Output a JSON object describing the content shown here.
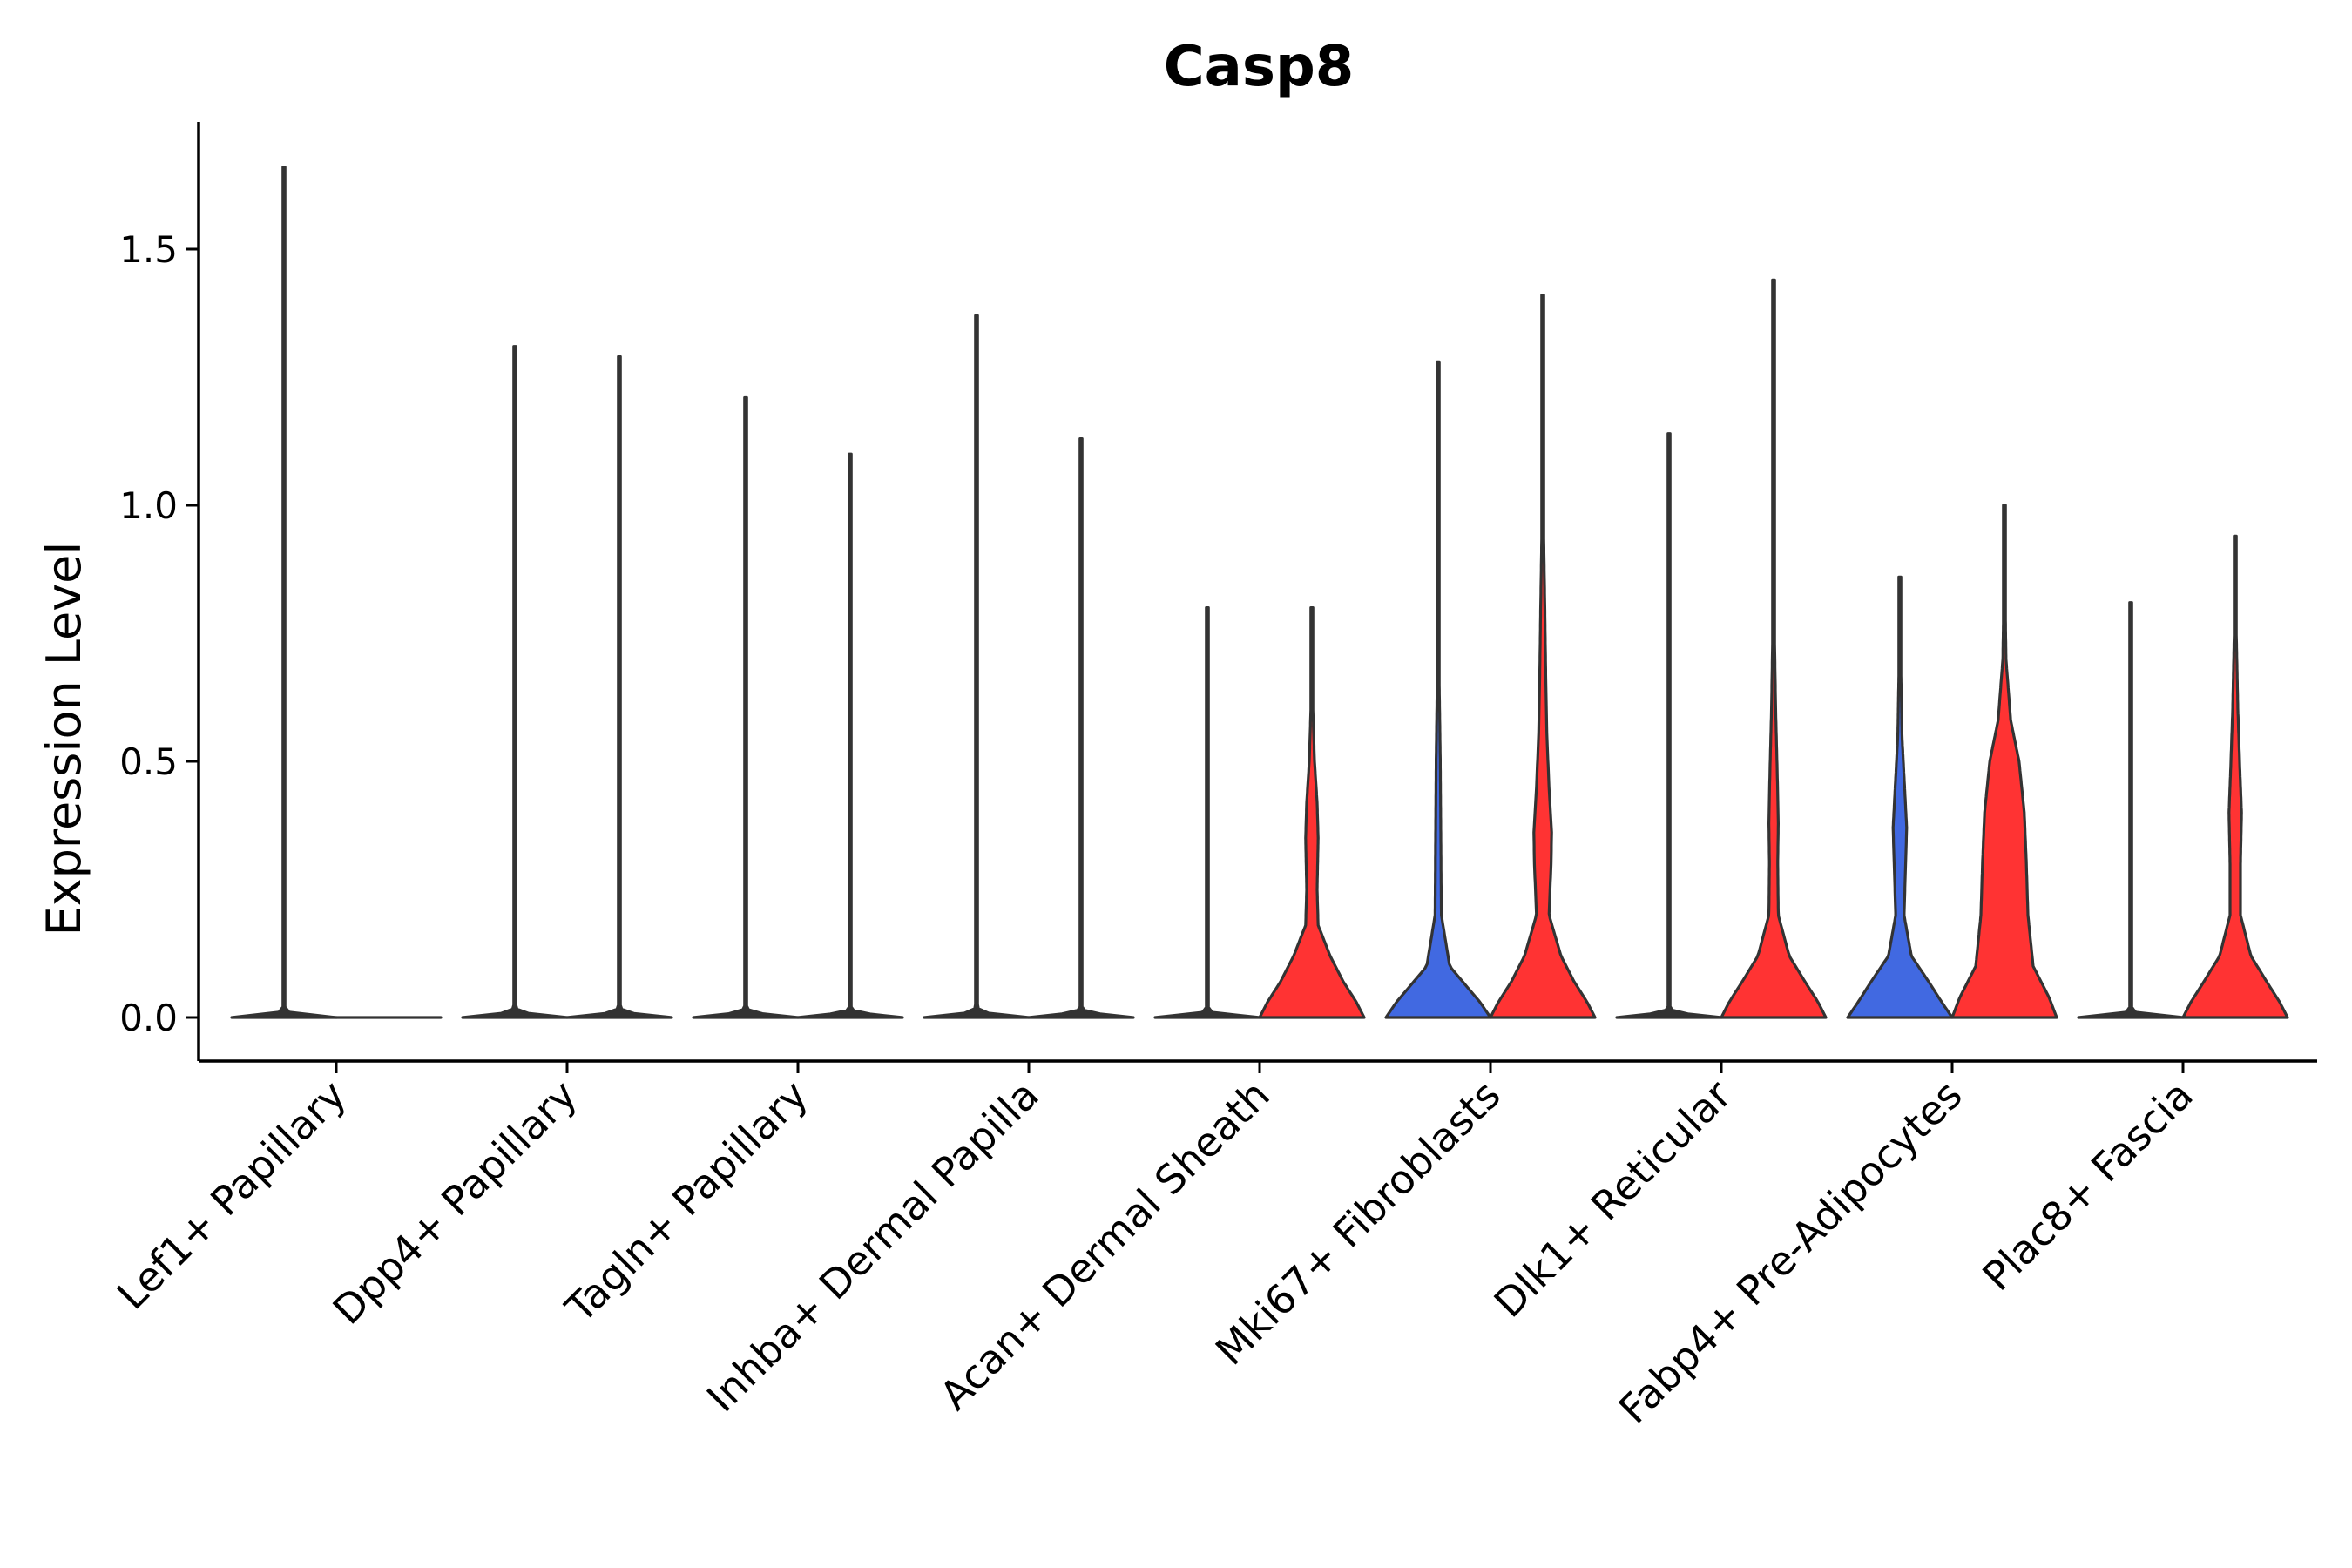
{
  "chart_data": {
    "type": "violin",
    "title": "Casp8",
    "xlabel": "",
    "ylabel": "Expression Level",
    "ylim": [
      -0.08,
      1.75
    ],
    "yticks": [
      0.0,
      0.5,
      1.0,
      1.5
    ],
    "ytick_labels": [
      "0.0",
      "0.5",
      "1.0",
      "1.5"
    ],
    "grid": false,
    "colors": {
      "group1": "#4169E1",
      "group2": "#FF3333",
      "outline": "#333333"
    },
    "categories": [
      "Lef1+ Papillary",
      "Dpp4+ Papillary",
      "Tagln+ Papillary",
      "Inhba+ Dermal Papilla",
      "Acan+ Dermal Sheath",
      "Mki67+ Fibroblasts",
      "Dlk1+ Reticular",
      "Fabp4+ Pre-Adipocytes",
      "Plac8+ Fascia"
    ],
    "series": [
      {
        "name": "group1",
        "color": "#4169E1",
        "violins": [
          {
            "category": "Lef1+ Papillary",
            "max": 1.66,
            "density": [
              [
                0,
                1.0
              ],
              [
                0.01,
                0.1
              ],
              [
                0.02,
                0.012
              ],
              [
                0.05,
                0.006
              ],
              [
                1.66,
                0.006
              ]
            ]
          },
          {
            "category": "Dpp4+ Papillary",
            "max": 1.31,
            "density": [
              [
                0,
                1.0
              ],
              [
                0.01,
                0.1
              ],
              [
                0.02,
                0.012
              ],
              [
                0.05,
                0.006
              ],
              [
                1.31,
                0.006
              ]
            ]
          },
          {
            "category": "Tagln+ Papillary",
            "max": 1.21,
            "density": [
              [
                0,
                1.0
              ],
              [
                0.01,
                0.1
              ],
              [
                0.02,
                0.012
              ],
              [
                0.05,
                0.006
              ],
              [
                1.21,
                0.006
              ]
            ]
          },
          {
            "category": "Inhba+ Dermal Papilla",
            "max": 1.37,
            "density": [
              [
                0,
                1.0
              ],
              [
                0.01,
                0.1
              ],
              [
                0.02,
                0.012
              ],
              [
                0.05,
                0.006
              ],
              [
                1.37,
                0.006
              ]
            ]
          },
          {
            "category": "Acan+ Dermal Sheath",
            "max": 0.8,
            "density": [
              [
                0,
                1.0
              ],
              [
                0.01,
                0.1
              ],
              [
                0.02,
                0.012
              ],
              [
                0.05,
                0.006
              ],
              [
                0.8,
                0.006
              ]
            ]
          },
          {
            "category": "Mki67+ Fibroblasts",
            "max": 1.28,
            "density": [
              [
                0,
                1.0
              ],
              [
                0.03,
                0.8
              ],
              [
                0.06,
                0.55
              ],
              [
                0.1,
                0.22
              ],
              [
                0.2,
                0.06
              ],
              [
                0.35,
                0.05
              ],
              [
                0.5,
                0.04
              ],
              [
                0.65,
                0.02
              ],
              [
                0.85,
                0.01
              ],
              [
                1.28,
                0.006
              ]
            ]
          },
          {
            "category": "Dlk1+ Reticular",
            "max": 1.14,
            "density": [
              [
                0,
                1.0
              ],
              [
                0.01,
                0.1
              ],
              [
                0.02,
                0.012
              ],
              [
                0.05,
                0.006
              ],
              [
                1.14,
                0.006
              ]
            ]
          },
          {
            "category": "Fabp4+ Pre-Adipocytes",
            "max": 0.86,
            "density": [
              [
                0,
                1.0
              ],
              [
                0.03,
                0.8
              ],
              [
                0.07,
                0.55
              ],
              [
                0.12,
                0.22
              ],
              [
                0.2,
                0.08
              ],
              [
                0.3,
                0.11
              ],
              [
                0.37,
                0.13
              ],
              [
                0.45,
                0.09
              ],
              [
                0.55,
                0.04
              ],
              [
                0.7,
                0.015
              ],
              [
                0.86,
                0.006
              ]
            ]
          },
          {
            "category": "Plac8+ Fascia",
            "max": 0.81,
            "density": [
              [
                0,
                1.0
              ],
              [
                0.01,
                0.1
              ],
              [
                0.02,
                0.012
              ],
              [
                0.05,
                0.006
              ],
              [
                0.81,
                0.006
              ]
            ]
          }
        ]
      },
      {
        "name": "group2",
        "color": "#FF3333",
        "violins": [
          {
            "category": "Lef1+ Papillary",
            "max": 0.0,
            "density": [
              [
                0,
                1.0
              ],
              [
                0.01,
                0.1
              ],
              [
                0.02,
                0.012
              ]
            ]
          },
          {
            "category": "Dpp4+ Papillary",
            "max": 1.29,
            "density": [
              [
                0,
                1.0
              ],
              [
                0.01,
                0.1
              ],
              [
                0.02,
                0.012
              ],
              [
                0.05,
                0.006
              ],
              [
                1.29,
                0.006
              ]
            ]
          },
          {
            "category": "Tagln+ Papillary",
            "max": 1.1,
            "density": [
              [
                0,
                1.0
              ],
              [
                0.01,
                0.1
              ],
              [
                0.02,
                0.012
              ],
              [
                0.05,
                0.006
              ],
              [
                1.1,
                0.006
              ]
            ]
          },
          {
            "category": "Inhba+ Dermal Papilla",
            "max": 1.13,
            "density": [
              [
                0,
                1.0
              ],
              [
                0.01,
                0.1
              ],
              [
                0.02,
                0.012
              ],
              [
                0.05,
                0.006
              ],
              [
                1.13,
                0.006
              ]
            ]
          },
          {
            "category": "Acan+ Dermal Sheath",
            "max": 0.8,
            "density": [
              [
                0,
                1.0
              ],
              [
                0.03,
                0.85
              ],
              [
                0.07,
                0.6
              ],
              [
                0.12,
                0.35
              ],
              [
                0.18,
                0.12
              ],
              [
                0.25,
                0.1
              ],
              [
                0.35,
                0.12
              ],
              [
                0.42,
                0.1
              ],
              [
                0.5,
                0.05
              ],
              [
                0.6,
                0.02
              ],
              [
                0.8,
                0.006
              ]
            ]
          },
          {
            "category": "Mki67+ Fibroblasts",
            "max": 1.41,
            "density": [
              [
                0,
                1.0
              ],
              [
                0.03,
                0.85
              ],
              [
                0.07,
                0.6
              ],
              [
                0.12,
                0.35
              ],
              [
                0.2,
                0.12
              ],
              [
                0.3,
                0.16
              ],
              [
                0.36,
                0.17
              ],
              [
                0.45,
                0.12
              ],
              [
                0.55,
                0.08
              ],
              [
                0.65,
                0.06
              ],
              [
                0.8,
                0.04
              ],
              [
                1.0,
                0.01
              ],
              [
                1.41,
                0.006
              ]
            ]
          },
          {
            "category": "Dlk1+ Reticular",
            "max": 1.44,
            "density": [
              [
                0,
                1.0
              ],
              [
                0.03,
                0.85
              ],
              [
                0.07,
                0.6
              ],
              [
                0.12,
                0.3
              ],
              [
                0.2,
                0.09
              ],
              [
                0.3,
                0.08
              ],
              [
                0.38,
                0.09
              ],
              [
                0.48,
                0.07
              ],
              [
                0.6,
                0.04
              ],
              [
                0.8,
                0.01
              ],
              [
                1.44,
                0.006
              ]
            ]
          },
          {
            "category": "Fabp4+ Pre-Adipocytes",
            "max": 1.0,
            "density": [
              [
                0,
                1.0
              ],
              [
                0.04,
                0.85
              ],
              [
                0.1,
                0.55
              ],
              [
                0.2,
                0.45
              ],
              [
                0.3,
                0.42
              ],
              [
                0.4,
                0.38
              ],
              [
                0.5,
                0.28
              ],
              [
                0.58,
                0.12
              ],
              [
                0.7,
                0.03
              ],
              [
                0.85,
                0.01
              ],
              [
                1.0,
                0.012
              ]
            ]
          },
          {
            "category": "Plac8+ Fascia",
            "max": 0.94,
            "density": [
              [
                0,
                1.0
              ],
              [
                0.03,
                0.85
              ],
              [
                0.07,
                0.6
              ],
              [
                0.12,
                0.3
              ],
              [
                0.2,
                0.1
              ],
              [
                0.3,
                0.1
              ],
              [
                0.4,
                0.12
              ],
              [
                0.48,
                0.09
              ],
              [
                0.6,
                0.05
              ],
              [
                0.75,
                0.02
              ],
              [
                0.94,
                0.006
              ]
            ]
          }
        ]
      }
    ]
  }
}
